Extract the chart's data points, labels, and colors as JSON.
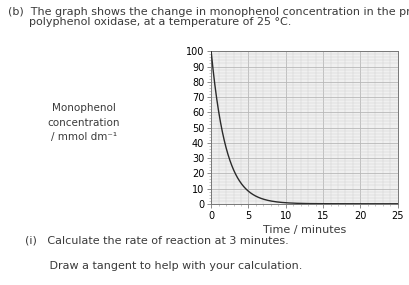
{
  "title_line1": "(b)  The graph shows the change in monophenol concentration in the presence of",
  "title_line2": "      polyphenol oxidase, at a temperature of 25 °C.",
  "ylabel_lines": [
    "Monophenol",
    "concentration",
    "/ mmol dm⁻¹"
  ],
  "xlabel": "Time / minutes",
  "xlim": [
    0,
    25
  ],
  "ylim": [
    0,
    100
  ],
  "xticks_major": [
    0,
    5,
    10,
    15,
    20,
    25
  ],
  "yticks_major": [
    0,
    10,
    20,
    30,
    40,
    50,
    60,
    70,
    80,
    90,
    100
  ],
  "x_minor_interval": 1,
  "y_minor_interval": 2,
  "curve_color": "#2b2b2b",
  "curve_decay": 0.5,
  "curve_scale": 100,
  "grid_minor_color": "#d0d0d0",
  "grid_major_color": "#b8b8b8",
  "background_color": "#f0f0f0",
  "text_color": "#3a3a3a",
  "subtitle_i": "(i)   Calculate the rate of reaction at 3 minutes.",
  "subtitle_ii": "       Draw a tangent to help with your calculation.",
  "font_size_body": 8.0,
  "font_size_tick": 7.0,
  "font_size_ylabel": 7.5
}
